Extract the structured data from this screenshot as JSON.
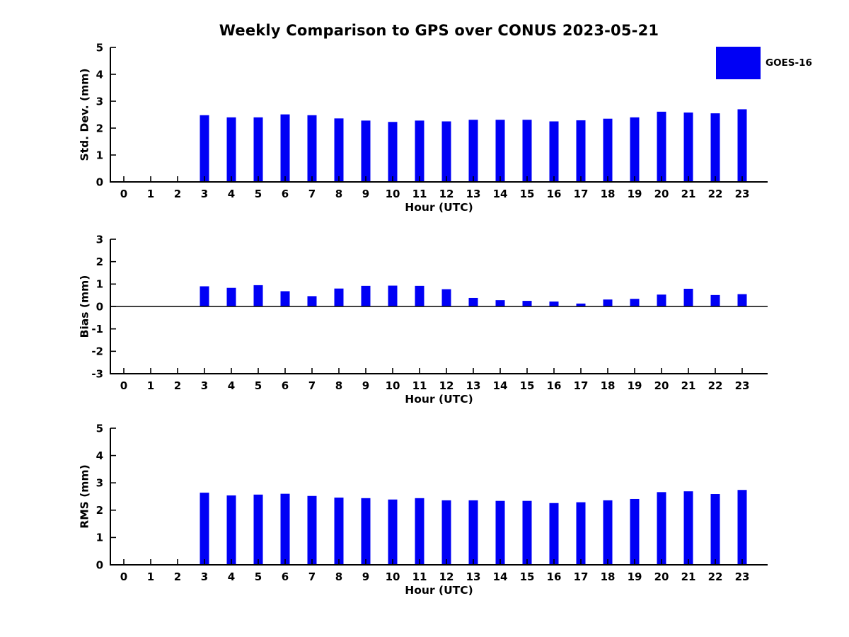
{
  "title": "Weekly Comparison to GPS over CONUS 2023-05-21",
  "legend": {
    "label": "GOES-16",
    "color": "#0000F5"
  },
  "colors": {
    "bar": "#0000F5",
    "axis": "#000000",
    "text": "#000000",
    "background": "#FFFFFF"
  },
  "chart_data": [
    {
      "type": "bar",
      "name": "std-dev",
      "series_name": "GOES-16",
      "ylabel": "Std. Dev. (mm)",
      "xlabel": "Hour (UTC)",
      "categories": [
        "0",
        "1",
        "2",
        "3",
        "4",
        "5",
        "6",
        "7",
        "8",
        "9",
        "10",
        "11",
        "12",
        "13",
        "14",
        "15",
        "16",
        "17",
        "18",
        "19",
        "20",
        "21",
        "22",
        "23"
      ],
      "values": [
        null,
        null,
        null,
        2.48,
        2.4,
        2.4,
        2.51,
        2.48,
        2.36,
        2.28,
        2.23,
        2.28,
        2.25,
        2.31,
        2.31,
        2.31,
        2.25,
        2.29,
        2.35,
        2.4,
        2.61,
        2.58,
        2.55,
        2.7
      ],
      "ylim": [
        0,
        5
      ],
      "yticks": [
        0,
        1,
        2,
        3,
        4,
        5
      ],
      "grid": false,
      "legend_position": "upper right outside"
    },
    {
      "type": "bar",
      "name": "bias",
      "series_name": "GOES-16",
      "ylabel": "Bias (mm)",
      "xlabel": "Hour (UTC)",
      "categories": [
        "0",
        "1",
        "2",
        "3",
        "4",
        "5",
        "6",
        "7",
        "8",
        "9",
        "10",
        "11",
        "12",
        "13",
        "14",
        "15",
        "16",
        "17",
        "18",
        "19",
        "20",
        "21",
        "22",
        "23"
      ],
      "values": [
        null,
        null,
        null,
        0.9,
        0.83,
        0.95,
        0.68,
        0.46,
        0.8,
        0.92,
        0.93,
        0.92,
        0.77,
        0.38,
        0.28,
        0.25,
        0.22,
        0.13,
        0.31,
        0.34,
        0.53,
        0.79,
        0.51,
        0.55
      ],
      "ylim": [
        -3,
        3
      ],
      "yticks": [
        -3,
        -2,
        -1,
        0,
        1,
        2,
        3
      ],
      "grid": false,
      "zero_line": true
    },
    {
      "type": "bar",
      "name": "rms",
      "series_name": "GOES-16",
      "ylabel": "RMS (mm)",
      "xlabel": "Hour (UTC)",
      "categories": [
        "0",
        "1",
        "2",
        "3",
        "4",
        "5",
        "6",
        "7",
        "8",
        "9",
        "10",
        "11",
        "12",
        "13",
        "14",
        "15",
        "16",
        "17",
        "18",
        "19",
        "20",
        "21",
        "22",
        "23"
      ],
      "values": [
        null,
        null,
        null,
        2.64,
        2.54,
        2.57,
        2.6,
        2.52,
        2.46,
        2.44,
        2.39,
        2.44,
        2.36,
        2.36,
        2.34,
        2.34,
        2.26,
        2.29,
        2.36,
        2.41,
        2.66,
        2.69,
        2.59,
        2.74
      ],
      "ylim": [
        0,
        5
      ],
      "yticks": [
        0,
        1,
        2,
        3,
        4,
        5
      ],
      "grid": false
    }
  ]
}
